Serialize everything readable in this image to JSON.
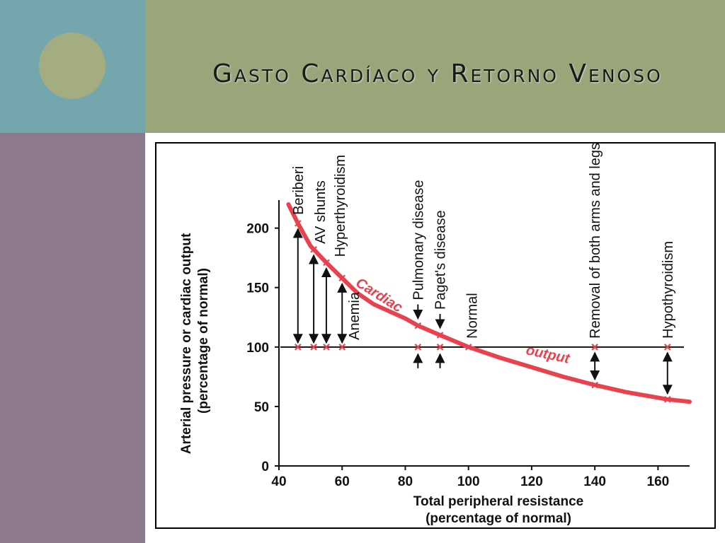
{
  "slide": {
    "title": "Gasto Cardíaco y Retorno Venoso"
  },
  "chart_data": {
    "type": "line",
    "xlabel": "Total peripheral resistance",
    "xlabel_sub": "(percentage of normal)",
    "ylabel": "Arterial pressure or cardiac output",
    "ylabel_sub": "(percentage of normal)",
    "xlim": [
      40,
      170
    ],
    "ylim": [
      0,
      220
    ],
    "x_ticks": [
      40,
      60,
      80,
      100,
      120,
      140,
      160
    ],
    "y_ticks": [
      0,
      50,
      100,
      150,
      200
    ],
    "grid": false,
    "series": [
      {
        "name": "Cardiac output",
        "color": "#e8424f",
        "x": [
          43,
          46,
          50,
          55,
          60,
          65,
          70,
          80,
          84,
          91,
          100,
          110,
          120,
          130,
          140,
          150,
          163,
          170
        ],
        "y": [
          220,
          204,
          185,
          171,
          158,
          145,
          136,
          124,
          118,
          110,
          100,
          91,
          83,
          75,
          68,
          62,
          56,
          54
        ]
      },
      {
        "name": "Arterial pressure",
        "color": "#111111",
        "x": [
          40,
          170
        ],
        "y": [
          100,
          100
        ]
      }
    ],
    "curve_labels": [
      "Cardiac",
      "output"
    ],
    "conditions": [
      {
        "label": "Beriberi",
        "x": 46,
        "co": 204,
        "arrow": "up"
      },
      {
        "label": "AV shunts",
        "x": 51,
        "co": 182,
        "arrow": "up"
      },
      {
        "label": "Hyperthyroidism",
        "x": 55,
        "co": 171,
        "arrow": "up"
      },
      {
        "label": "Anemia",
        "x": 60,
        "co": 158,
        "arrow": "up"
      },
      {
        "label": "Pulmonary disease",
        "x": 84,
        "co": 118,
        "arrow": "up"
      },
      {
        "label": "Paget's disease",
        "x": 91,
        "co": 110,
        "arrow": "up"
      },
      {
        "label": "Normal",
        "x": 100,
        "co": 100,
        "arrow": "none"
      },
      {
        "label": "Removal of both arms and legs",
        "x": 140,
        "co": 68,
        "arrow": "down"
      },
      {
        "label": "Hypothyroidism",
        "x": 163,
        "co": 56,
        "arrow": "down"
      }
    ]
  }
}
